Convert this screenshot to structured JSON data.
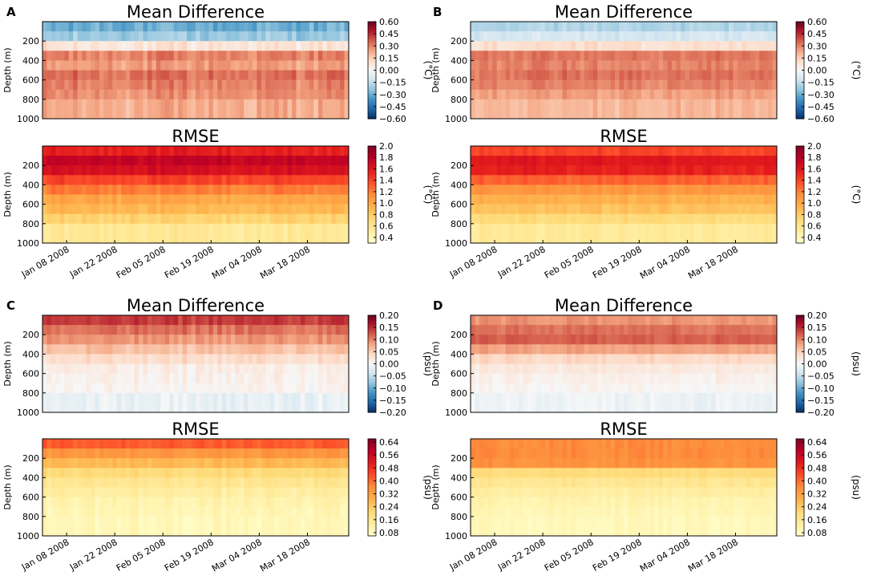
{
  "figure": {
    "x_dates": [
      "Jan 08 2008",
      "Jan 22 2008",
      "Feb 05 2008",
      "Feb 19 2008",
      "Mar 04 2008",
      "Mar 18 2008"
    ]
  },
  "colormaps": {
    "diverging": [
      "#053061",
      "#2166ac",
      "#4393c3",
      "#92c5de",
      "#d1e5f0",
      "#f7f7f7",
      "#fddbc7",
      "#f4a582",
      "#d6604d",
      "#b2182b",
      "#67001f"
    ],
    "sequential": [
      "#ffffcc",
      "#ffeda0",
      "#fed976",
      "#feb24c",
      "#fd8d3c",
      "#fc4e2a",
      "#e31a1c",
      "#bd0026",
      "#800026"
    ]
  },
  "chart_data": [
    {
      "panel": "A",
      "title": "Mean Difference",
      "type": "heatmap",
      "ylabel": "Depth (m)",
      "yticks": [
        200,
        400,
        600,
        800,
        1000
      ],
      "ylim": [
        0,
        1000
      ],
      "cbar_label": "(°C)",
      "cbar_ticks": [
        "0.60",
        "0.45",
        "0.30",
        "0.15",
        "0.00",
        "−0.15",
        "−0.30",
        "−0.45",
        "−0.60"
      ],
      "vmin": -0.6,
      "vmax": 0.6,
      "cmap": "diverging",
      "depth_bands": [
        0,
        100,
        200,
        300,
        400,
        500,
        600,
        700,
        800,
        1000
      ],
      "band_values": [
        -0.3,
        -0.22,
        0.08,
        0.3,
        0.26,
        0.33,
        0.3,
        0.27,
        0.22
      ],
      "variation": 0.07,
      "time_columns": 70
    },
    {
      "panel": "A",
      "title": "RMSE",
      "type": "heatmap",
      "ylabel": "Depth (m)",
      "yticks": [
        200,
        400,
        600,
        800,
        1000
      ],
      "ylim": [
        0,
        1000
      ],
      "cbar_label": "(°C)",
      "cbar_ticks": [
        "2.0",
        "1.8",
        "1.6",
        "1.4",
        "1.2",
        "1.0",
        "0.8",
        "0.6",
        "0.4"
      ],
      "vmin": 0.3,
      "vmax": 2.0,
      "cmap": "sequential",
      "depth_bands": [
        0,
        100,
        200,
        300,
        400,
        500,
        600,
        700,
        800,
        1000
      ],
      "band_values": [
        1.55,
        1.75,
        1.65,
        1.4,
        1.2,
        1.0,
        0.9,
        0.75,
        0.55
      ],
      "variation": 0.09,
      "time_columns": 70,
      "x_dates": [
        "Jan 08 2008",
        "Jan 22 2008",
        "Feb 05 2008",
        "Feb 19 2008",
        "Mar 04 2008",
        "Mar 18 2008"
      ]
    },
    {
      "panel": "B",
      "title": "Mean Difference",
      "type": "heatmap",
      "ylabel": "Depth (m)",
      "yticks": [
        200,
        400,
        600,
        800,
        1000
      ],
      "ylim": [
        0,
        1000
      ],
      "cbar_label": "(°C)",
      "cbar_ticks": [
        "0.60",
        "0.45",
        "0.30",
        "0.15",
        "0.00",
        "−0.15",
        "−0.30",
        "−0.45",
        "−0.60"
      ],
      "vmin": -0.6,
      "vmax": 0.6,
      "cmap": "diverging",
      "depth_bands": [
        0,
        100,
        200,
        300,
        400,
        500,
        600,
        700,
        800,
        1000
      ],
      "band_values": [
        -0.18,
        -0.1,
        0.1,
        0.32,
        0.3,
        0.33,
        0.3,
        0.25,
        0.2
      ],
      "variation": 0.05,
      "time_columns": 70
    },
    {
      "panel": "B",
      "title": "RMSE",
      "type": "heatmap",
      "ylabel": "Depth (m)",
      "yticks": [
        200,
        400,
        600,
        800,
        1000
      ],
      "ylim": [
        0,
        1000
      ],
      "cbar_label": "(°C)",
      "cbar_ticks": [
        "2.0",
        "1.8",
        "1.6",
        "1.4",
        "1.2",
        "1.0",
        "0.8",
        "0.6",
        "0.4"
      ],
      "vmin": 0.3,
      "vmax": 2.0,
      "cmap": "sequential",
      "depth_bands": [
        0,
        100,
        200,
        300,
        400,
        500,
        600,
        700,
        800,
        1000
      ],
      "band_values": [
        1.4,
        1.6,
        1.55,
        1.3,
        1.1,
        0.95,
        0.85,
        0.7,
        0.55
      ],
      "variation": 0.07,
      "time_columns": 70,
      "x_dates": [
        "Jan 08 2008",
        "Jan 22 2008",
        "Feb 05 2008",
        "Feb 19 2008",
        "Mar 04 2008",
        "Mar 18 2008"
      ]
    },
    {
      "panel": "C",
      "title": "Mean Difference",
      "type": "heatmap",
      "ylabel": "Depth (m)",
      "yticks": [
        200,
        400,
        600,
        800,
        1000
      ],
      "ylim": [
        0,
        1000
      ],
      "cbar_label": "(psu)",
      "cbar_ticks": [
        "0.20",
        "0.15",
        "0.10",
        "0.05",
        "0.00",
        "−0.05",
        "−0.10",
        "−0.15",
        "−0.20"
      ],
      "vmin": -0.2,
      "vmax": 0.2,
      "cmap": "diverging",
      "depth_bands": [
        0,
        100,
        200,
        300,
        400,
        500,
        600,
        700,
        800,
        1000
      ],
      "band_values": [
        0.14,
        0.11,
        0.09,
        0.06,
        0.035,
        0.015,
        0.01,
        0.005,
        -0.015
      ],
      "variation": 0.018,
      "time_columns": 70
    },
    {
      "panel": "C",
      "title": "RMSE",
      "type": "heatmap",
      "ylabel": "Depth (m)",
      "yticks": [
        200,
        400,
        600,
        800,
        1000
      ],
      "ylim": [
        0,
        1000
      ],
      "cbar_label": "(psu)",
      "cbar_ticks": [
        "0.64",
        "0.56",
        "0.48",
        "0.40",
        "0.32",
        "0.24",
        "0.16",
        "0.08"
      ],
      "vmin": 0.06,
      "vmax": 0.66,
      "cmap": "sequential",
      "depth_bands": [
        0,
        100,
        200,
        300,
        400,
        500,
        600,
        700,
        800,
        1000
      ],
      "band_values": [
        0.42,
        0.34,
        0.27,
        0.2,
        0.16,
        0.13,
        0.11,
        0.1,
        0.09
      ],
      "variation": 0.025,
      "time_columns": 70,
      "x_dates": [
        "Jan 08 2008",
        "Jan 22 2008",
        "Feb 05 2008",
        "Feb 19 2008",
        "Mar 04 2008",
        "Mar 18 2008"
      ]
    },
    {
      "panel": "D",
      "title": "Mean Difference",
      "type": "heatmap",
      "ylabel": "Depth (m)",
      "yticks": [
        200,
        400,
        600,
        800,
        1000
      ],
      "ylim": [
        0,
        1000
      ],
      "cbar_label": "(psu)",
      "cbar_ticks": [
        "0.20",
        "0.15",
        "0.10",
        "0.05",
        "0.00",
        "−0.05",
        "−0.10",
        "−0.15",
        "−0.20"
      ],
      "vmin": -0.2,
      "vmax": 0.2,
      "cmap": "diverging",
      "depth_bands": [
        0,
        100,
        200,
        300,
        400,
        500,
        600,
        700,
        800,
        1000
      ],
      "band_values": [
        0.09,
        0.11,
        0.12,
        0.08,
        0.04,
        0.02,
        0.01,
        0.005,
        -0.01
      ],
      "variation": 0.012,
      "time_columns": 70
    },
    {
      "panel": "D",
      "title": "RMSE",
      "type": "heatmap",
      "ylabel": "Depth (m)",
      "yticks": [
        200,
        400,
        600,
        800,
        1000
      ],
      "ylim": [
        0,
        1000
      ],
      "cbar_label": "(psu)",
      "cbar_ticks": [
        "0.64",
        "0.56",
        "0.48",
        "0.40",
        "0.32",
        "0.24",
        "0.16",
        "0.08"
      ],
      "vmin": 0.06,
      "vmax": 0.66,
      "cmap": "sequential",
      "depth_bands": [
        0,
        100,
        200,
        300,
        400,
        500,
        600,
        700,
        800,
        1000
      ],
      "band_values": [
        0.36,
        0.36,
        0.35,
        0.2,
        0.16,
        0.13,
        0.11,
        0.1,
        0.09
      ],
      "variation": 0.02,
      "time_columns": 70,
      "x_dates": [
        "Jan 08 2008",
        "Jan 22 2008",
        "Feb 05 2008",
        "Feb 19 2008",
        "Mar 04 2008",
        "Mar 18 2008"
      ]
    }
  ]
}
